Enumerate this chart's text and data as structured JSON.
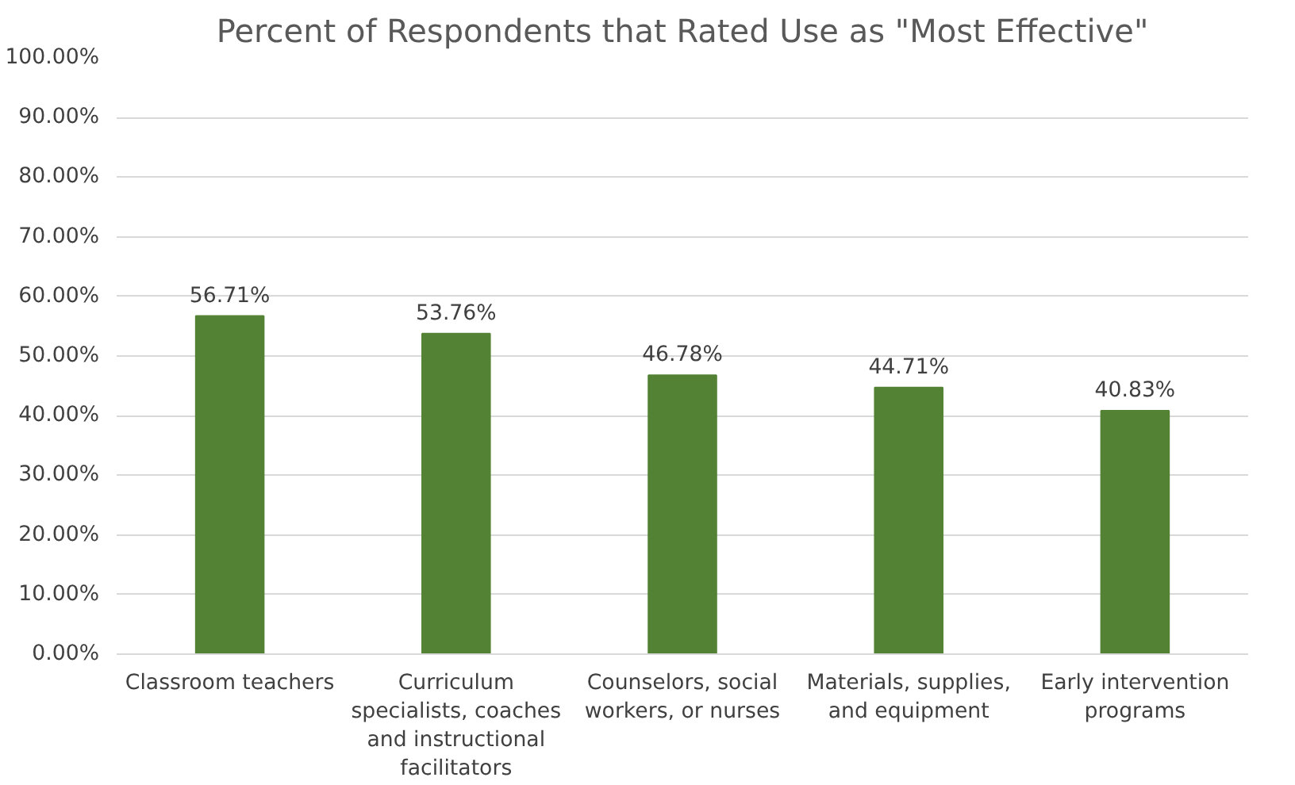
{
  "chart_data": {
    "type": "bar",
    "title": "Percent of Respondents that Rated Use as \"Most Effective\"",
    "categories": [
      "Classroom teachers",
      "Curriculum specialists, coaches and instructional facilitators",
      "Counselors, social workers, or nurses",
      "Materials, supplies, and equipment",
      "Early intervention programs"
    ],
    "values": [
      56.71,
      53.76,
      46.78,
      44.71,
      40.83
    ],
    "value_labels": [
      "56.71%",
      "53.76%",
      "46.78%",
      "44.71%",
      "40.83%"
    ],
    "color": "#548235",
    "ylim": [
      0,
      100
    ],
    "yticks": [
      {
        "value": 0,
        "label": "0.00%"
      },
      {
        "value": 10,
        "label": "10.00%"
      },
      {
        "value": 20,
        "label": "20.00%"
      },
      {
        "value": 30,
        "label": "30.00%"
      },
      {
        "value": 40,
        "label": "40.00%"
      },
      {
        "value": 50,
        "label": "50.00%"
      },
      {
        "value": 60,
        "label": "60.00%"
      },
      {
        "value": 70,
        "label": "70.00%"
      },
      {
        "value": 80,
        "label": "80.00%"
      },
      {
        "value": 90,
        "label": "90.00%"
      },
      {
        "value": 100,
        "label": "100.00%"
      }
    ],
    "grid": "y"
  }
}
